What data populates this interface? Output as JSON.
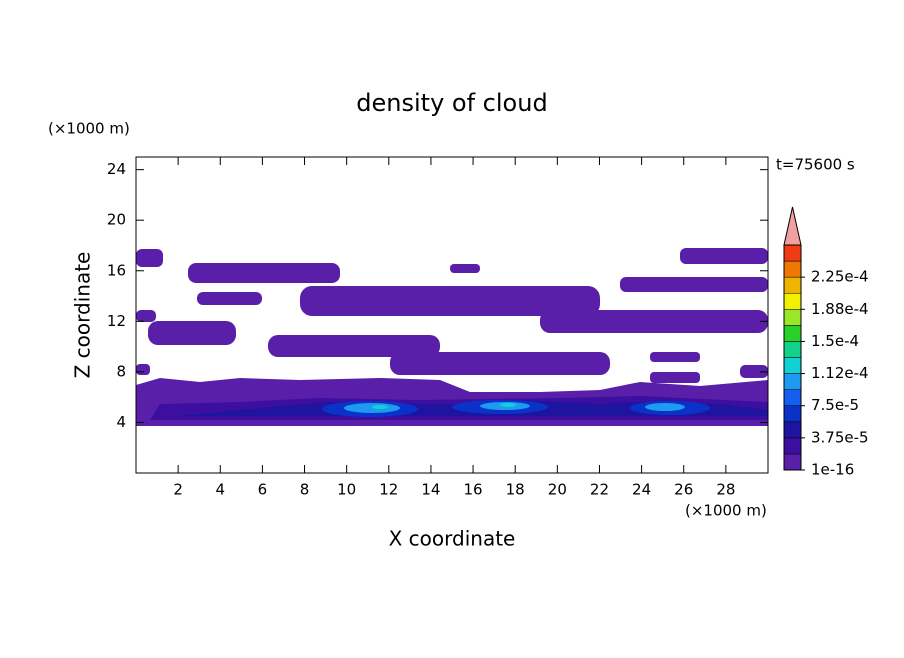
{
  "chart_data": {
    "type": "contour",
    "title": "density of cloud",
    "xlabel": "X coordinate",
    "ylabel": "Z coordinate",
    "x_unit": "(×1000 m)",
    "y_unit": "(×1000 m)",
    "annotation": "t=75600 s",
    "xlim": [
      0,
      30
    ],
    "ylim": [
      0,
      25
    ],
    "xticks": [
      2,
      4,
      6,
      8,
      10,
      12,
      14,
      16,
      18,
      20,
      22,
      24,
      26,
      28
    ],
    "yticks": [
      4,
      8,
      12,
      16,
      20,
      24
    ],
    "colorbar": {
      "levels": [
        1e-16,
        1.875e-05,
        3.75e-05,
        5.625e-05,
        7.5e-05,
        9.375e-05,
        0.0001125,
        0.00013125,
        0.00015,
        0.00016875,
        0.0001875,
        0.00020625,
        0.000225,
        0.00024375,
        0.0002625
      ],
      "colors": [
        "#5a1fa8",
        "#3c0fa0",
        "#1e14a0",
        "#0a32c8",
        "#145ef0",
        "#1e9bf0",
        "#10d2d2",
        "#10d28c",
        "#28d228",
        "#9be628",
        "#f0f000",
        "#f0b400",
        "#f07800",
        "#f03c14"
      ],
      "extend_color": "#f0a0a0",
      "ticks": [
        1e-16,
        {
          "value": 3.75e-05,
          "label": "3.75e-5"
        },
        {
          "value": 7.5e-05,
          "label": "7.5e-5"
        },
        {
          "value": 0.0001125,
          "label": "1.12e-4"
        },
        {
          "value": 0.00015,
          "label": "1.5e-4"
        },
        {
          "value": 0.0001875,
          "label": "1.88e-4"
        },
        {
          "value": 0.000225,
          "label": "2.25e-4"
        }
      ]
    }
  }
}
